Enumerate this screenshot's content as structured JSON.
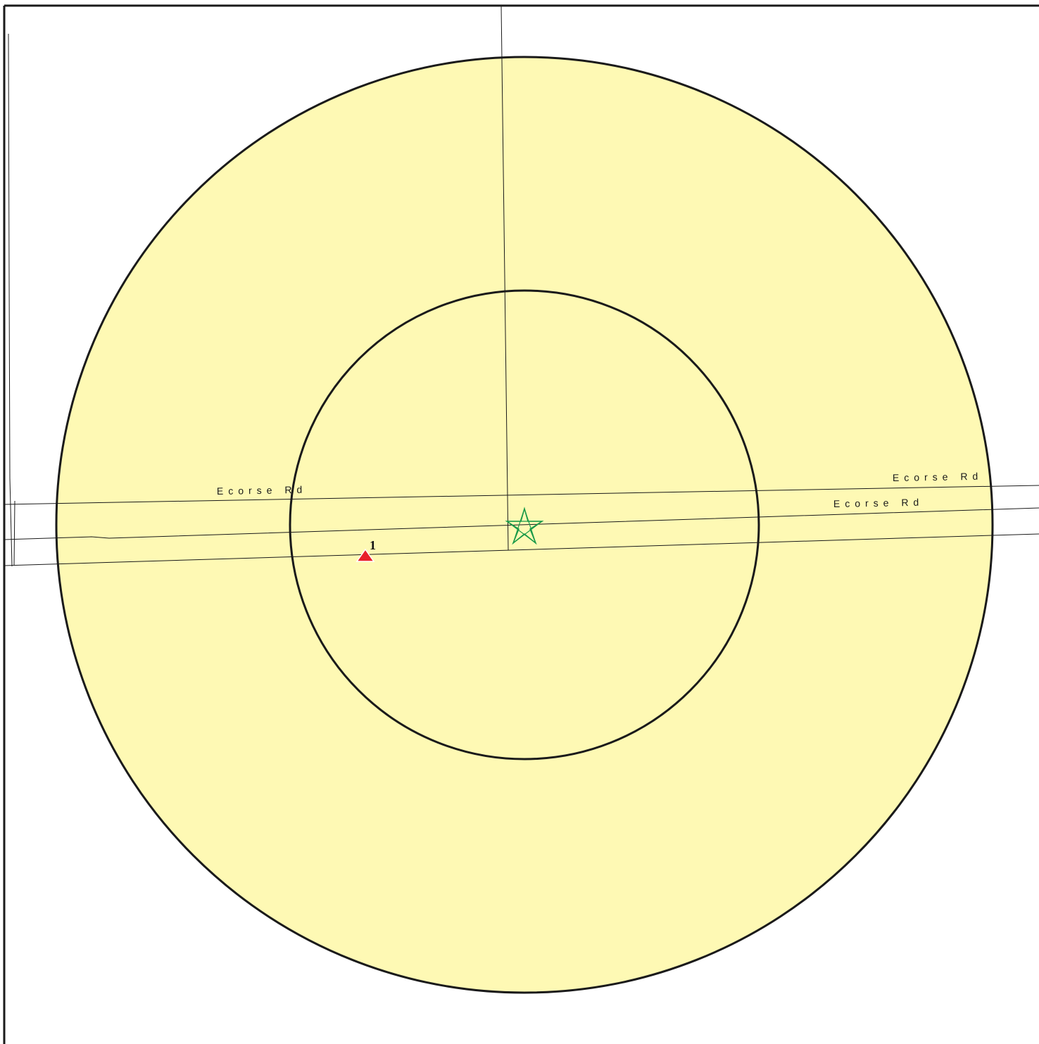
{
  "map": {
    "ring_fill_color": "#fef9b4",
    "ring_stroke_color": "#1a1a1a",
    "road_color": "#1a1a1a",
    "center_marker": {
      "icon": "star-icon",
      "color": "#1a9a48"
    },
    "site_markers": [
      {
        "label": "1",
        "icon": "triangle-icon",
        "color": "#e8202a"
      }
    ],
    "road_labels": [
      {
        "text": "Ecorse Rd"
      },
      {
        "text": "Ecorse Rd"
      },
      {
        "text": "Ecorse Rd"
      }
    ]
  }
}
